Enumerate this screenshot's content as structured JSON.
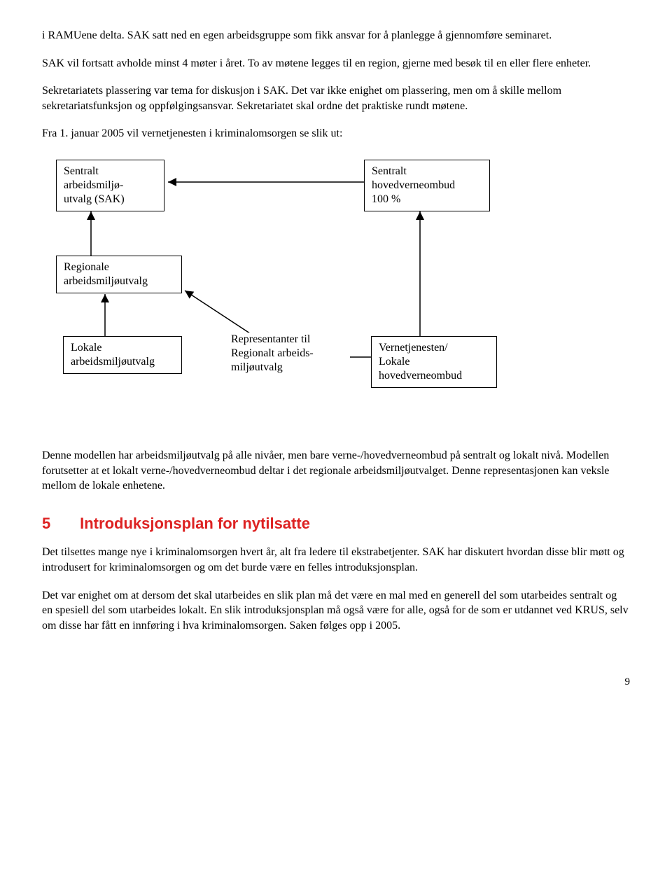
{
  "para1": "i RAMUene delta. SAK satt ned en egen arbeidsgruppe som fikk ansvar for å planlegge å gjennomføre seminaret.",
  "para2": "SAK vil fortsatt avholde minst 4 møter i året. To av møtene legges til en region, gjerne med besøk til en eller flere enheter.",
  "para3": "Sekretariatets plassering var tema for diskusjon i SAK. Det var ikke enighet om plassering, men om å skille mellom sekretariatsfunksjon og oppfølgingsansvar. Sekretariatet skal ordne det praktiske rundt møtene.",
  "para4": "Fra 1. januar 2005 vil vernetjenesten i kriminalomsorgen se slik ut:",
  "diagram": {
    "box1": "Sentralt\narbeidsmiljø-\nutvalg (SAK)",
    "box2": "Sentralt\nhovedverneombud\n100 %",
    "box3": "Regionale\narbeidsmiljøutvalg",
    "box4": "Lokale\narbeidsmiljøutvalg",
    "label_rep": "Representanter til\nRegionalt arbeids-\nmiljøutvalg",
    "box5": "Vernetjenesten/\nLokale\nhovedverneombud",
    "stroke": "#000000",
    "stroke_width": 1.5
  },
  "para5": "Denne modellen har arbeidsmiljøutvalg på alle nivåer, men bare verne-/hovedverneombud på sentralt og lokalt nivå. Modellen forutsetter at et lokalt verne-/hovedverneombud deltar i det regionale arbeidsmiljøutvalget. Denne representasjonen kan veksle mellom de lokale enhetene.",
  "section": {
    "num": "5",
    "title": "Introduksjonsplan for nytilsatte"
  },
  "para6": "Det tilsettes mange nye i kriminalomsorgen hvert år, alt fra ledere til ekstrabetjenter. SAK har diskutert hvordan disse blir møtt og introdusert for kriminalomsorgen og om det burde være en felles introduksjonsplan.",
  "para7": "Det var enighet om at dersom det skal utarbeides en slik plan må det være en mal med en generell del som utarbeides sentralt og en spesiell del som utarbeides lokalt. En slik introduksjonsplan må også være for alle, også for de som er utdannet ved KRUS, selv om disse har fått en innføring i hva kriminalomsorgen. Saken følges opp i 2005.",
  "pagenum": "9"
}
